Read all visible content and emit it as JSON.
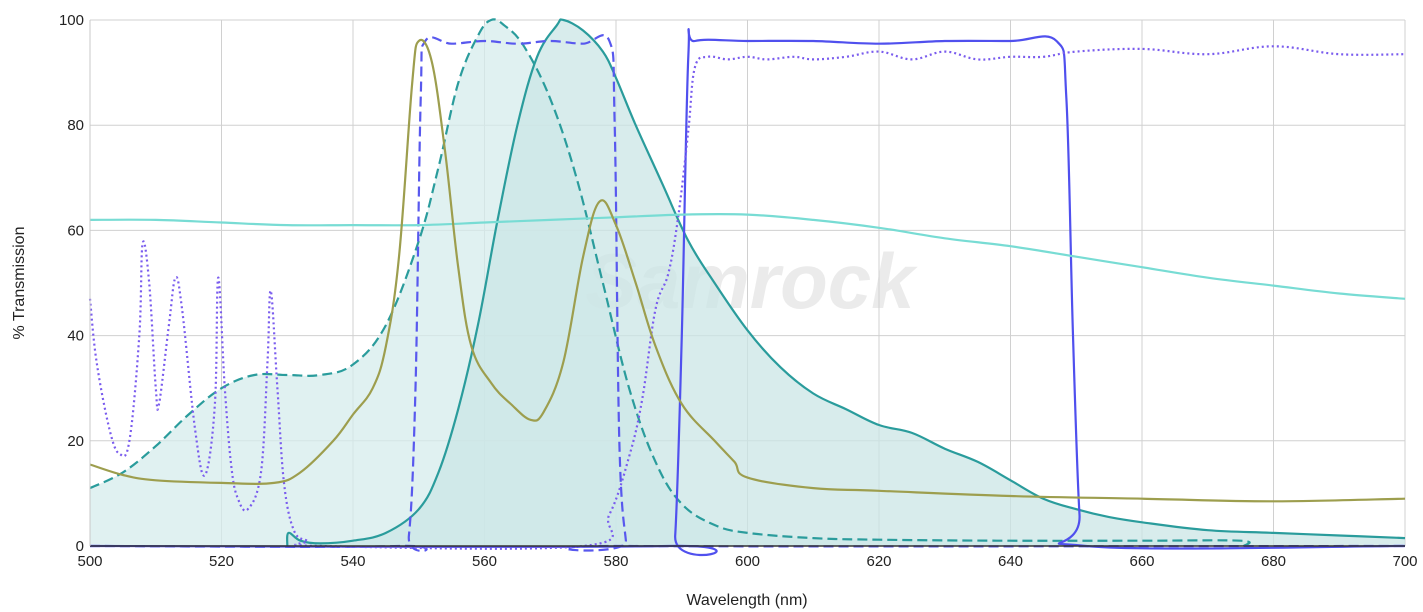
{
  "chart_data": {
    "type": "line",
    "xlabel": "Wavelength (nm)",
    "ylabel": "% Transmission",
    "xlim": [
      500,
      700
    ],
    "ylim": [
      0,
      100
    ],
    "x_ticks": [
      "500",
      "520",
      "540",
      "560",
      "580",
      "600",
      "620",
      "640",
      "660",
      "680",
      "700"
    ],
    "y_ticks": [
      "0",
      "20",
      "40",
      "60",
      "80",
      "100"
    ],
    "grid": true,
    "legend": "none",
    "watermark": "Samrock",
    "series": [
      {
        "id": "excitation-spectrum",
        "color": "#2a9c9c",
        "style": "dashed",
        "fill": "#d6ecec",
        "points": [
          [
            500,
            11
          ],
          [
            505,
            14
          ],
          [
            510,
            19
          ],
          [
            515,
            25
          ],
          [
            520,
            30
          ],
          [
            525,
            32.5
          ],
          [
            530,
            32.5
          ],
          [
            535,
            32.5
          ],
          [
            540,
            34.5
          ],
          [
            545,
            42
          ],
          [
            550,
            58
          ],
          [
            553,
            72
          ],
          [
            556,
            88
          ],
          [
            559,
            97
          ],
          [
            561,
            100
          ],
          [
            563,
            99
          ],
          [
            566,
            95
          ],
          [
            570,
            85
          ],
          [
            574,
            70
          ],
          [
            578,
            50
          ],
          [
            582,
            30
          ],
          [
            586,
            16
          ],
          [
            590,
            8
          ],
          [
            595,
            4
          ],
          [
            600,
            2.5
          ],
          [
            610,
            1.5
          ],
          [
            620,
            1.2
          ],
          [
            640,
            1
          ],
          [
            660,
            1
          ],
          [
            675,
            1
          ],
          [
            675.5,
            0
          ]
        ]
      },
      {
        "id": "emission-spectrum",
        "color": "#2a9c9c",
        "style": "solid",
        "fill": "#cbe6e6",
        "points": [
          [
            530,
            0
          ],
          [
            530.2,
            2.5
          ],
          [
            532,
            1
          ],
          [
            535,
            0.5
          ],
          [
            540,
            1
          ],
          [
            545,
            2.5
          ],
          [
            550,
            7
          ],
          [
            553,
            14
          ],
          [
            556,
            26
          ],
          [
            559,
            42
          ],
          [
            562,
            62
          ],
          [
            565,
            80
          ],
          [
            568,
            93
          ],
          [
            571,
            99
          ],
          [
            572,
            100
          ],
          [
            575,
            98
          ],
          [
            578,
            94
          ],
          [
            580,
            89
          ],
          [
            583,
            80
          ],
          [
            587,
            69
          ],
          [
            591,
            58
          ],
          [
            595,
            50
          ],
          [
            600,
            41
          ],
          [
            605,
            34
          ],
          [
            610,
            29
          ],
          [
            615,
            26
          ],
          [
            620,
            23
          ],
          [
            625,
            21.5
          ],
          [
            630,
            18.5
          ],
          [
            635,
            16
          ],
          [
            640,
            12.5
          ],
          [
            645,
            9
          ],
          [
            650,
            7
          ],
          [
            655,
            5.5
          ],
          [
            660,
            4.5
          ],
          [
            670,
            3
          ],
          [
            680,
            2.5
          ],
          [
            690,
            2
          ],
          [
            700,
            1.5
          ]
        ]
      },
      {
        "id": "exciter-filter",
        "color": "#5858ee",
        "style": "dashed",
        "fill": "none",
        "points": [
          [
            500,
            0
          ],
          [
            547,
            0
          ],
          [
            548.5,
            2
          ],
          [
            549.5,
            30
          ],
          [
            550.3,
            85
          ],
          [
            551,
            96
          ],
          [
            555,
            95.5
          ],
          [
            560,
            96
          ],
          [
            565,
            95.5
          ],
          [
            570,
            96
          ],
          [
            575,
            95.5
          ],
          [
            579,
            96
          ],
          [
            579.8,
            80
          ],
          [
            580.5,
            20
          ],
          [
            581.5,
            1
          ],
          [
            582,
            0
          ],
          [
            700,
            0
          ]
        ]
      },
      {
        "id": "emitter-filter",
        "color": "#5050ee",
        "style": "solid",
        "fill": "none",
        "points": [
          [
            500,
            0
          ],
          [
            588,
            0
          ],
          [
            589,
            2
          ],
          [
            590,
            40
          ],
          [
            591,
            93
          ],
          [
            592,
            96
          ],
          [
            600,
            96
          ],
          [
            610,
            96
          ],
          [
            620,
            95.5
          ],
          [
            630,
            96
          ],
          [
            640,
            96
          ],
          [
            647,
            96
          ],
          [
            648.5,
            85
          ],
          [
            649.5,
            40
          ],
          [
            650.5,
            6
          ],
          [
            651.5,
            0
          ],
          [
            700,
            0
          ]
        ]
      },
      {
        "id": "dichroic-mirror",
        "color": "#7a5cee",
        "style": "dotted",
        "fill": "none",
        "points": [
          [
            500,
            47
          ],
          [
            501,
            35
          ],
          [
            503,
            22
          ],
          [
            504.5,
            17.5
          ],
          [
            506,
            20
          ],
          [
            507.5,
            40
          ],
          [
            508,
            57.5
          ],
          [
            509,
            50
          ],
          [
            510,
            30
          ],
          [
            510.5,
            27
          ],
          [
            512,
            42
          ],
          [
            513,
            51
          ],
          [
            514,
            45
          ],
          [
            516,
            22
          ],
          [
            517.5,
            13.5
          ],
          [
            519,
            27
          ],
          [
            519.5,
            51
          ],
          [
            520.5,
            30
          ],
          [
            521.5,
            15
          ],
          [
            522.5,
            9
          ],
          [
            524,
            7
          ],
          [
            526,
            14
          ],
          [
            527,
            35
          ],
          [
            527.5,
            48.5
          ],
          [
            528.5,
            30
          ],
          [
            529.5,
            12
          ],
          [
            531,
            3
          ],
          [
            533,
            1
          ],
          [
            535,
            0
          ],
          [
            575,
            0
          ],
          [
            579,
            6
          ],
          [
            582,
            17
          ],
          [
            584,
            28
          ],
          [
            586,
            45
          ],
          [
            588,
            52
          ],
          [
            589.5,
            63
          ],
          [
            591,
            79
          ],
          [
            592,
            91
          ],
          [
            594,
            93
          ],
          [
            597,
            92.5
          ],
          [
            600,
            93
          ],
          [
            603,
            92.5
          ],
          [
            607,
            93
          ],
          [
            610,
            92.5
          ],
          [
            615,
            93
          ],
          [
            620,
            94
          ],
          [
            625,
            92.5
          ],
          [
            630,
            94
          ],
          [
            635,
            92.5
          ],
          [
            640,
            93
          ],
          [
            645,
            93
          ],
          [
            650,
            94
          ],
          [
            660,
            94.5
          ],
          [
            670,
            93.5
          ],
          [
            680,
            95
          ],
          [
            690,
            93.5
          ],
          [
            700,
            93.5
          ]
        ]
      },
      {
        "id": "camera-qe",
        "color": "#78dcd4",
        "style": "solid",
        "fill": "none",
        "points": [
          [
            500,
            62
          ],
          [
            510,
            62
          ],
          [
            520,
            61.5
          ],
          [
            530,
            61
          ],
          [
            540,
            61
          ],
          [
            550,
            61
          ],
          [
            560,
            61.5
          ],
          [
            570,
            62
          ],
          [
            580,
            62.5
          ],
          [
            590,
            63
          ],
          [
            600,
            63
          ],
          [
            610,
            62
          ],
          [
            620,
            60.5
          ],
          [
            630,
            58.5
          ],
          [
            640,
            57
          ],
          [
            650,
            55
          ],
          [
            660,
            53
          ],
          [
            670,
            51
          ],
          [
            680,
            49.5
          ],
          [
            690,
            48
          ],
          [
            700,
            47
          ]
        ]
      },
      {
        "id": "light-source",
        "color": "#9d9e4e",
        "style": "solid",
        "fill": "none",
        "points": [
          [
            500,
            15.5
          ],
          [
            505,
            13.5
          ],
          [
            510,
            12.5
          ],
          [
            520,
            12
          ],
          [
            528,
            12
          ],
          [
            532,
            14
          ],
          [
            537,
            20
          ],
          [
            540,
            25
          ],
          [
            543,
            30
          ],
          [
            545,
            38
          ],
          [
            547,
            55
          ],
          [
            549,
            88
          ],
          [
            550,
            96
          ],
          [
            552,
            92
          ],
          [
            554,
            75
          ],
          [
            556,
            53
          ],
          [
            558,
            38
          ],
          [
            561,
            31
          ],
          [
            564,
            27
          ],
          [
            567,
            24
          ],
          [
            569,
            25.5
          ],
          [
            572,
            35
          ],
          [
            575,
            55
          ],
          [
            577.5,
            65.5
          ],
          [
            580,
            61
          ],
          [
            583,
            50
          ],
          [
            586,
            38
          ],
          [
            590,
            27
          ],
          [
            595,
            20
          ],
          [
            598,
            16
          ],
          [
            600,
            13
          ],
          [
            610,
            11
          ],
          [
            620,
            10.5
          ],
          [
            640,
            9.5
          ],
          [
            660,
            9
          ],
          [
            680,
            8.5
          ],
          [
            700,
            9
          ]
        ]
      }
    ]
  }
}
